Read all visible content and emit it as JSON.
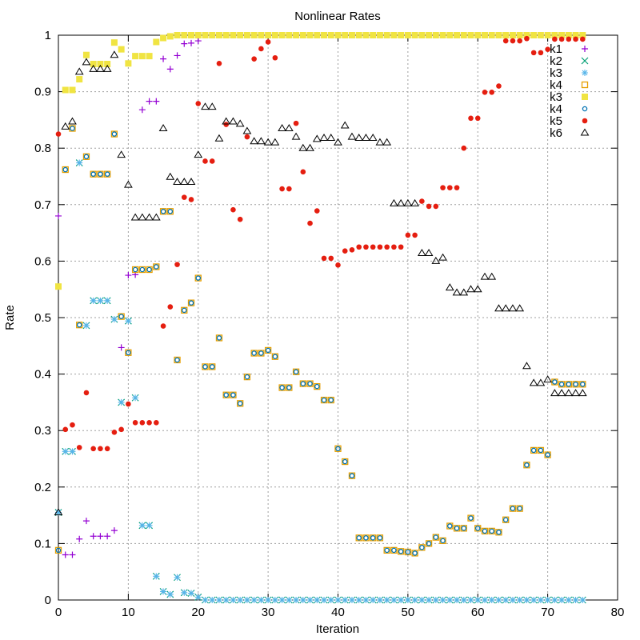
{
  "chart_data": {
    "type": "scatter",
    "title": "Nonlinear Rates",
    "xlabel": "Iteration",
    "ylabel": "Rate",
    "xlim": [
      0,
      80
    ],
    "ylim": [
      0,
      1
    ],
    "xticks": [
      0,
      10,
      20,
      30,
      40,
      50,
      60,
      70,
      80
    ],
    "yticks": [
      0,
      0.1,
      0.2,
      0.3,
      0.4,
      0.5,
      0.6,
      0.7,
      0.8,
      0.9,
      1
    ],
    "ytick_labels": [
      "0",
      "0.1",
      "0.2",
      "0.3",
      "0.4",
      "0.5",
      "0.6",
      "0.7",
      "0.8",
      "0.9",
      "1"
    ],
    "grid": true,
    "legend_position": "top-right",
    "series": [
      {
        "name": "k1",
        "marker": "plus",
        "color": "#9400d3",
        "x": [
          0,
          1,
          2,
          3,
          4,
          5,
          6,
          7,
          8,
          9,
          10,
          11,
          12,
          13,
          14,
          15,
          16,
          17,
          18,
          19,
          20,
          21,
          22,
          23,
          24,
          25,
          26,
          27,
          28,
          29,
          30,
          31,
          32,
          33,
          34,
          35,
          36,
          37,
          38,
          39,
          40,
          41,
          42,
          43,
          44,
          45,
          46,
          47,
          48,
          49,
          50,
          51,
          52,
          53,
          54,
          55,
          56,
          57,
          58,
          59,
          60,
          61,
          62,
          63,
          64,
          65,
          66,
          67,
          68,
          69,
          70,
          71,
          72,
          73,
          74,
          75
        ],
        "y": [
          0.68,
          0.08,
          0.08,
          0.108,
          0.14,
          0.113,
          0.113,
          0.113,
          0.123,
          0.447,
          0.575,
          0.576,
          0.868,
          0.883,
          0.883,
          0.958,
          0.94,
          0.964,
          0.985,
          0.986,
          0.99,
          1,
          1,
          1,
          1,
          1,
          1,
          1,
          1,
          1,
          1,
          1,
          1,
          1,
          1,
          1,
          1,
          1,
          1,
          1,
          1,
          1,
          1,
          1,
          1,
          1,
          1,
          1,
          1,
          1,
          1,
          1,
          1,
          1,
          1,
          1,
          1,
          1,
          1,
          1,
          1,
          1,
          1,
          1,
          1,
          1,
          1,
          1,
          1,
          1,
          1,
          1,
          1,
          1,
          1,
          1
        ]
      },
      {
        "name": "k2",
        "marker": "cross",
        "color": "#009e73",
        "x": [
          0,
          1,
          2,
          3,
          4,
          5,
          6,
          7,
          8,
          9,
          10,
          11,
          12,
          13,
          14,
          15,
          16,
          17,
          18,
          19,
          20,
          21,
          22,
          23,
          24,
          25,
          26,
          27,
          28,
          29,
          30,
          31,
          32,
          33,
          34,
          35,
          36,
          37,
          38,
          39,
          40,
          41,
          42,
          43,
          44,
          45,
          46,
          47,
          48,
          49,
          50,
          51,
          52,
          53,
          54,
          55,
          56,
          57,
          58,
          59,
          60,
          61,
          62,
          63,
          64,
          65,
          66,
          67,
          68,
          69,
          70,
          71,
          72,
          73,
          74,
          75
        ],
        "y": [
          0.155,
          0.263,
          0.263,
          0.774,
          0.486,
          0.53,
          0.53,
          0.53,
          0.497,
          0.35,
          0.494,
          0.358,
          0.132,
          0.132,
          0.042,
          0.015,
          0.01,
          0.04,
          0.013,
          0.012,
          0.005,
          0,
          0,
          0,
          0,
          0,
          0,
          0,
          0,
          0,
          0,
          0,
          0,
          0,
          0,
          0,
          0,
          0,
          0,
          0,
          0,
          0,
          0,
          0,
          0,
          0,
          0,
          0,
          0,
          0,
          0,
          0,
          0,
          0,
          0,
          0,
          0,
          0,
          0,
          0,
          0,
          0,
          0,
          0,
          0,
          0,
          0,
          0,
          0,
          0,
          0,
          0,
          0,
          0,
          0,
          0
        ]
      },
      {
        "name": "k3",
        "marker": "star",
        "color": "#56b4e9",
        "x": [
          0,
          1,
          2,
          3,
          4,
          5,
          6,
          7,
          8,
          9,
          10,
          11,
          12,
          13,
          14,
          15,
          16,
          17,
          18,
          19,
          20,
          21,
          22,
          23,
          24,
          25,
          26,
          27,
          28,
          29,
          30,
          31,
          32,
          33,
          34,
          35,
          36,
          37,
          38,
          39,
          40,
          41,
          42,
          43,
          44,
          45,
          46,
          47,
          48,
          49,
          50,
          51,
          52,
          53,
          54,
          55,
          56,
          57,
          58,
          59,
          60,
          61,
          62,
          63,
          64,
          65,
          66,
          67,
          68,
          69,
          70,
          71,
          72,
          73,
          74,
          75
        ],
        "y": [
          0.155,
          0.263,
          0.263,
          0.774,
          0.486,
          0.53,
          0.53,
          0.53,
          0.497,
          0.35,
          0.494,
          0.358,
          0.132,
          0.132,
          0.042,
          0.015,
          0.01,
          0.04,
          0.013,
          0.012,
          0.005,
          0,
          0,
          0,
          0,
          0,
          0,
          0,
          0,
          0,
          0,
          0,
          0,
          0,
          0,
          0,
          0,
          0,
          0,
          0,
          0,
          0,
          0,
          0,
          0,
          0,
          0,
          0,
          0,
          0,
          0,
          0,
          0,
          0,
          0,
          0,
          0,
          0,
          0,
          0,
          0,
          0,
          0,
          0,
          0,
          0,
          0,
          0,
          0,
          0,
          0,
          0,
          0,
          0,
          0,
          0
        ]
      },
      {
        "name": "k4",
        "marker": "open-square",
        "color": "#e69f00",
        "x": [
          0,
          1,
          2,
          3,
          4,
          5,
          6,
          7,
          8,
          9,
          10,
          11,
          12,
          13,
          14,
          15,
          16,
          17,
          18,
          19,
          20,
          21,
          22,
          23,
          24,
          25,
          26,
          27,
          28,
          29,
          30,
          31,
          32,
          33,
          34,
          35,
          36,
          37,
          38,
          39,
          40,
          41,
          42,
          43,
          44,
          45,
          46,
          47,
          48,
          49,
          50,
          51,
          52,
          53,
          54,
          55,
          56,
          57,
          58,
          59,
          60,
          61,
          62,
          63,
          64,
          65,
          66,
          67,
          68,
          69,
          70,
          71,
          72,
          73,
          74,
          75
        ],
        "y": [
          0.088,
          0.762,
          0.835,
          0.487,
          0.785,
          0.754,
          0.754,
          0.754,
          0.825,
          0.502,
          0.438,
          0.585,
          0.585,
          0.585,
          0.59,
          0.688,
          0.688,
          0.425,
          0.513,
          0.526,
          0.57,
          0.413,
          0.413,
          0.464,
          0.363,
          0.363,
          0.348,
          0.395,
          0.437,
          0.437,
          0.442,
          0.431,
          0.376,
          0.376,
          0.404,
          0.383,
          0.383,
          0.378,
          0.354,
          0.354,
          0.268,
          0.245,
          0.22,
          0.11,
          0.11,
          0.11,
          0.11,
          0.088,
          0.088,
          0.086,
          0.085,
          0.083,
          0.093,
          0.1,
          0.111,
          0.105,
          0.131,
          0.127,
          0.127,
          0.145,
          0.127,
          0.122,
          0.122,
          0.12,
          0.142,
          0.162,
          0.162,
          0.239,
          0.265,
          0.265,
          0.257,
          0.386,
          0.382,
          0.382,
          0.382,
          0.382
        ]
      },
      {
        "name": "k3",
        "marker": "filled-square",
        "color": "#f0e442",
        "x": [
          0,
          1,
          2,
          3,
          4,
          5,
          6,
          7,
          8,
          9,
          10,
          11,
          12,
          13,
          14,
          15,
          16,
          17,
          18,
          19,
          20,
          21,
          22,
          23,
          24,
          25,
          26,
          27,
          28,
          29,
          30,
          31,
          32,
          33,
          34,
          35,
          36,
          37,
          38,
          39,
          40,
          41,
          42,
          43,
          44,
          45,
          46,
          47,
          48,
          49,
          50,
          51,
          52,
          53,
          54,
          55,
          56,
          57,
          58,
          59,
          60,
          61,
          62,
          63,
          64,
          65,
          66,
          67,
          68,
          69,
          70,
          71,
          72,
          73,
          74,
          75
        ],
        "y": [
          0.555,
          0.903,
          0.903,
          0.922,
          0.965,
          0.949,
          0.949,
          0.949,
          0.987,
          0.975,
          0.95,
          0.963,
          0.963,
          0.963,
          0.988,
          0.995,
          0.998,
          1,
          1,
          1,
          1,
          1,
          1,
          1,
          1,
          1,
          1,
          1,
          1,
          1,
          1,
          1,
          1,
          1,
          1,
          1,
          1,
          1,
          1,
          1,
          1,
          1,
          1,
          1,
          1,
          1,
          1,
          1,
          1,
          1,
          1,
          1,
          1,
          1,
          1,
          1,
          1,
          1,
          1,
          1,
          1,
          1,
          1,
          1,
          1,
          1,
          1,
          1,
          1,
          1,
          1,
          1,
          1,
          1,
          1,
          1
        ]
      },
      {
        "name": "k4",
        "marker": "open-circle",
        "color": "#0072b2",
        "x": [
          0,
          1,
          2,
          3,
          4,
          5,
          6,
          7,
          8,
          9,
          10,
          11,
          12,
          13,
          14,
          15,
          16,
          17,
          18,
          19,
          20,
          21,
          22,
          23,
          24,
          25,
          26,
          27,
          28,
          29,
          30,
          31,
          32,
          33,
          34,
          35,
          36,
          37,
          38,
          39,
          40,
          41,
          42,
          43,
          44,
          45,
          46,
          47,
          48,
          49,
          50,
          51,
          52,
          53,
          54,
          55,
          56,
          57,
          58,
          59,
          60,
          61,
          62,
          63,
          64,
          65,
          66,
          67,
          68,
          69,
          70,
          71,
          72,
          73,
          74,
          75
        ],
        "y": [
          0.088,
          0.762,
          0.835,
          0.487,
          0.785,
          0.754,
          0.754,
          0.754,
          0.825,
          0.502,
          0.438,
          0.585,
          0.585,
          0.585,
          0.59,
          0.688,
          0.688,
          0.425,
          0.513,
          0.526,
          0.57,
          0.413,
          0.413,
          0.464,
          0.363,
          0.363,
          0.348,
          0.395,
          0.437,
          0.437,
          0.442,
          0.431,
          0.376,
          0.376,
          0.404,
          0.383,
          0.383,
          0.378,
          0.354,
          0.354,
          0.268,
          0.245,
          0.22,
          0.11,
          0.11,
          0.11,
          0.11,
          0.088,
          0.088,
          0.086,
          0.085,
          0.083,
          0.093,
          0.1,
          0.111,
          0.105,
          0.131,
          0.127,
          0.127,
          0.145,
          0.127,
          0.122,
          0.122,
          0.12,
          0.142,
          0.162,
          0.162,
          0.239,
          0.265,
          0.265,
          0.257,
          0.386,
          0.382,
          0.382,
          0.382,
          0.382
        ]
      },
      {
        "name": "k5",
        "marker": "filled-circle",
        "color": "#e51e10",
        "x": [
          0,
          1,
          2,
          3,
          4,
          5,
          6,
          7,
          8,
          9,
          10,
          11,
          12,
          13,
          14,
          15,
          16,
          17,
          18,
          19,
          20,
          21,
          22,
          23,
          24,
          25,
          26,
          27,
          28,
          29,
          30,
          31,
          32,
          33,
          34,
          35,
          36,
          37,
          38,
          39,
          40,
          41,
          42,
          43,
          44,
          45,
          46,
          47,
          48,
          49,
          50,
          51,
          52,
          53,
          54,
          55,
          56,
          57,
          58,
          59,
          60,
          61,
          62,
          63,
          64,
          65,
          66,
          67,
          68,
          69,
          70,
          71,
          72,
          73,
          74,
          75
        ],
        "y": [
          0.825,
          0.302,
          0.31,
          0.27,
          0.367,
          0.268,
          0.268,
          0.268,
          0.297,
          0.302,
          0.347,
          0.314,
          0.314,
          0.314,
          0.314,
          0.485,
          0.519,
          0.594,
          0.713,
          0.709,
          0.879,
          0.777,
          0.777,
          0.95,
          0.842,
          0.691,
          0.674,
          0.82,
          0.958,
          0.976,
          0.988,
          0.96,
          0.728,
          0.728,
          0.844,
          0.758,
          0.667,
          0.689,
          0.605,
          0.605,
          0.593,
          0.618,
          0.62,
          0.625,
          0.625,
          0.625,
          0.625,
          0.625,
          0.625,
          0.625,
          0.646,
          0.646,
          0.706,
          0.697,
          0.697,
          0.73,
          0.73,
          0.73,
          0.8,
          0.853,
          0.853,
          0.899,
          0.899,
          0.91,
          0.99,
          0.99,
          0.99,
          0.994,
          0.969,
          0.969,
          0.975,
          0.993,
          0.993,
          0.993,
          0.993,
          0.993
        ]
      },
      {
        "name": "k6",
        "marker": "open-triangle",
        "color": "#000000",
        "x": [
          0,
          1,
          2,
          3,
          4,
          5,
          6,
          7,
          8,
          9,
          10,
          11,
          12,
          13,
          14,
          15,
          16,
          17,
          18,
          19,
          20,
          21,
          22,
          23,
          24,
          25,
          26,
          27,
          28,
          29,
          30,
          31,
          32,
          33,
          34,
          35,
          36,
          37,
          38,
          39,
          40,
          41,
          42,
          43,
          44,
          45,
          46,
          47,
          48,
          49,
          50,
          51,
          52,
          53,
          54,
          55,
          56,
          57,
          58,
          59,
          60,
          61,
          62,
          63,
          64,
          65,
          66,
          67,
          68,
          69,
          70,
          71,
          72,
          73,
          74,
          75
        ],
        "y": [
          0.155,
          0.838,
          0.847,
          0.935,
          0.952,
          0.94,
          0.94,
          0.94,
          0.965,
          0.788,
          0.735,
          0.677,
          0.677,
          0.677,
          0.677,
          0.835,
          0.749,
          0.74,
          0.74,
          0.74,
          0.788,
          0.873,
          0.873,
          0.817,
          0.847,
          0.847,
          0.843,
          0.83,
          0.812,
          0.812,
          0.81,
          0.81,
          0.835,
          0.835,
          0.82,
          0.8,
          0.8,
          0.816,
          0.818,
          0.818,
          0.81,
          0.84,
          0.82,
          0.818,
          0.818,
          0.818,
          0.81,
          0.81,
          0.702,
          0.702,
          0.702,
          0.702,
          0.614,
          0.614,
          0.6,
          0.606,
          0.553,
          0.544,
          0.544,
          0.55,
          0.55,
          0.572,
          0.572,
          0.516,
          0.516,
          0.516,
          0.516,
          0.414,
          0.384,
          0.384,
          0.39,
          0.366,
          0.366,
          0.366,
          0.366,
          0.366
        ]
      }
    ]
  }
}
